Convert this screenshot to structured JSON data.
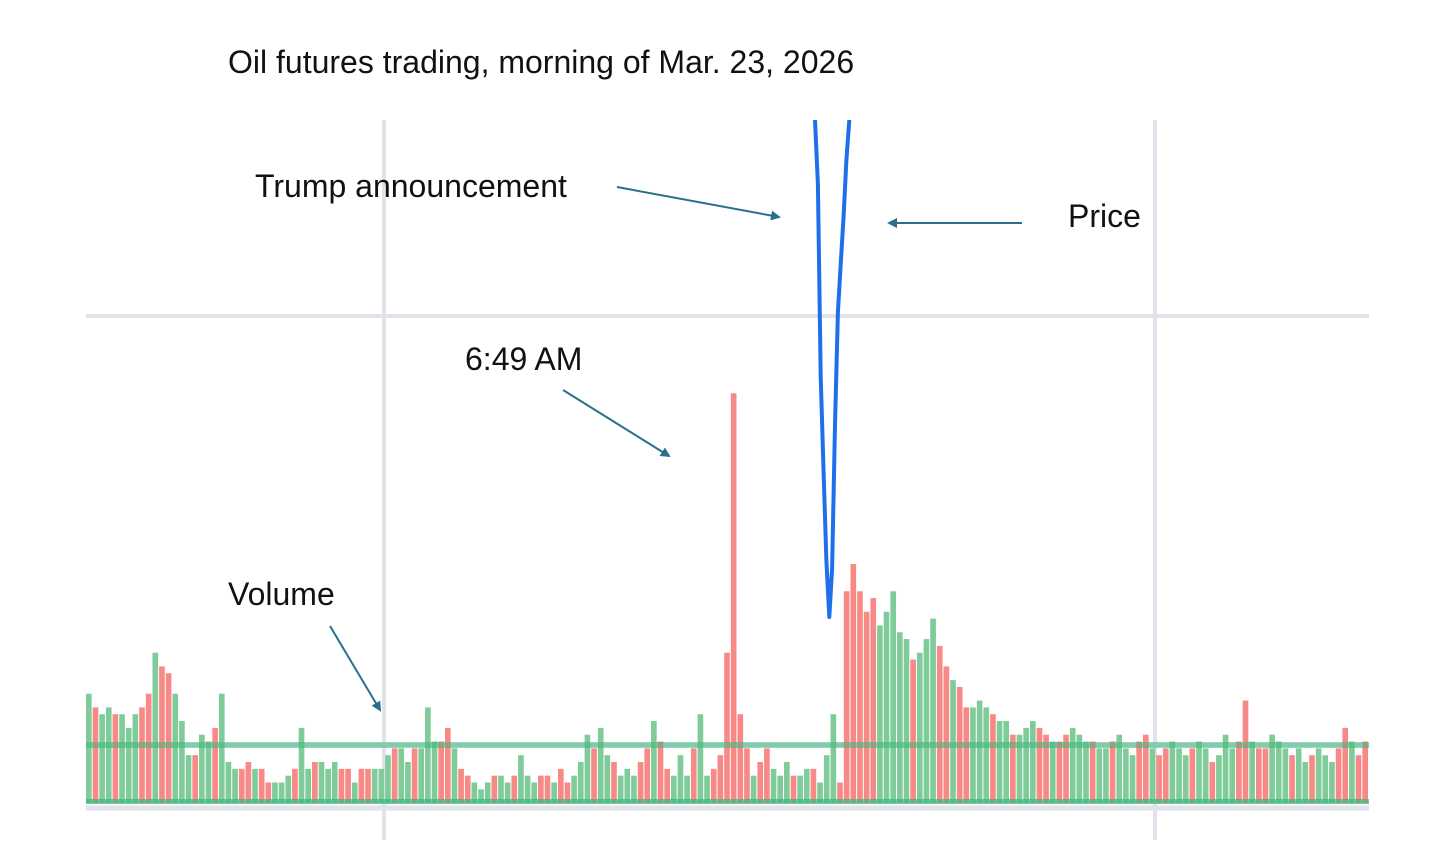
{
  "chart_data": {
    "type": "bar",
    "title": "Oil futures trading, morning of Mar. 23, 2026",
    "xlabel": "",
    "ylabel": "",
    "grid": true,
    "legend": "none",
    "colors": {
      "up": "#7fcc9a",
      "down": "#f78a87",
      "price_line": "#1f6feb",
      "grid": "#e1e3ea",
      "baseline": "#3cb77a",
      "arrow": "#2a6f8c"
    },
    "series": [
      {
        "type": "bar",
        "values": [
          0.16,
          0.14,
          0.13,
          0.14,
          0.13,
          0.13,
          0.11,
          0.13,
          0.14,
          0.16,
          0.22,
          0.2,
          0.19,
          0.16,
          0.12,
          0.07,
          0.07,
          0.1,
          0.09,
          0.11,
          0.16,
          0.06,
          0.05,
          0.05,
          0.06,
          0.05,
          0.05,
          0.03,
          0.03,
          0.03,
          0.04,
          0.05,
          0.11,
          0.05,
          0.06,
          0.06,
          0.05,
          0.06,
          0.05,
          0.05,
          0.03,
          0.05,
          0.05,
          0.05,
          0.05,
          0.07,
          0.08,
          0.08,
          0.06,
          0.08,
          0.08,
          0.14,
          0.09,
          0.09,
          0.11,
          0.08,
          0.05,
          0.04,
          0.03,
          0.02,
          0.03,
          0.04,
          0.04,
          0.03,
          0.04,
          0.07,
          0.04,
          0.03,
          0.04,
          0.04,
          0.03,
          0.05,
          0.03,
          0.04,
          0.06,
          0.1,
          0.08,
          0.11,
          0.07,
          0.06,
          0.04,
          0.05,
          0.04,
          0.06,
          0.08,
          0.12,
          0.09,
          0.05,
          0.04,
          0.07,
          0.04,
          0.08,
          0.13,
          0.04,
          0.05,
          0.07,
          0.22,
          0.6,
          0.13,
          0.08,
          0.04,
          0.06,
          0.08,
          0.05,
          0.04,
          0.06,
          0.04,
          0.04,
          0.05,
          0.05,
          0.03,
          0.07,
          0.13,
          0.03,
          0.31,
          0.35,
          0.31,
          0.28,
          0.3,
          0.26,
          0.28,
          0.31,
          0.25,
          0.24,
          0.21,
          0.22,
          0.24,
          0.27,
          0.23,
          0.2,
          0.18,
          0.17,
          0.14,
          0.14,
          0.15,
          0.14,
          0.13,
          0.12,
          0.12,
          0.1,
          0.1,
          0.11,
          0.12,
          0.11,
          0.1,
          0.09,
          0.09,
          0.1,
          0.11,
          0.1,
          0.09,
          0.09,
          0.08,
          0.08,
          0.09,
          0.1,
          0.08,
          0.07,
          0.09,
          0.1,
          0.08,
          0.07,
          0.08,
          0.09,
          0.08,
          0.07,
          0.08,
          0.09,
          0.08,
          0.06,
          0.07,
          0.1,
          0.08,
          0.09,
          0.15,
          0.09,
          0.08,
          0.08,
          0.1,
          0.09,
          0.08,
          0.07,
          0.08,
          0.06,
          0.07,
          0.08,
          0.07,
          0.06,
          0.08,
          0.11,
          0.09,
          0.07,
          0.09
        ]
      },
      {
        "type": "line",
        "values": [
          1.0,
          0.92,
          0.68,
          0.56,
          0.45,
          0.38,
          0.44,
          0.62,
          0.76,
          0.82,
          0.88,
          0.95,
          1.0,
          1.05,
          1.1,
          1.15,
          1.12,
          1.08,
          1.11,
          1.2,
          1.25,
          1.3
        ]
      }
    ]
  },
  "annotations": {
    "trump": "Trump announcement",
    "price": "Price",
    "time": "6:49 AM",
    "volume": "Volume"
  }
}
